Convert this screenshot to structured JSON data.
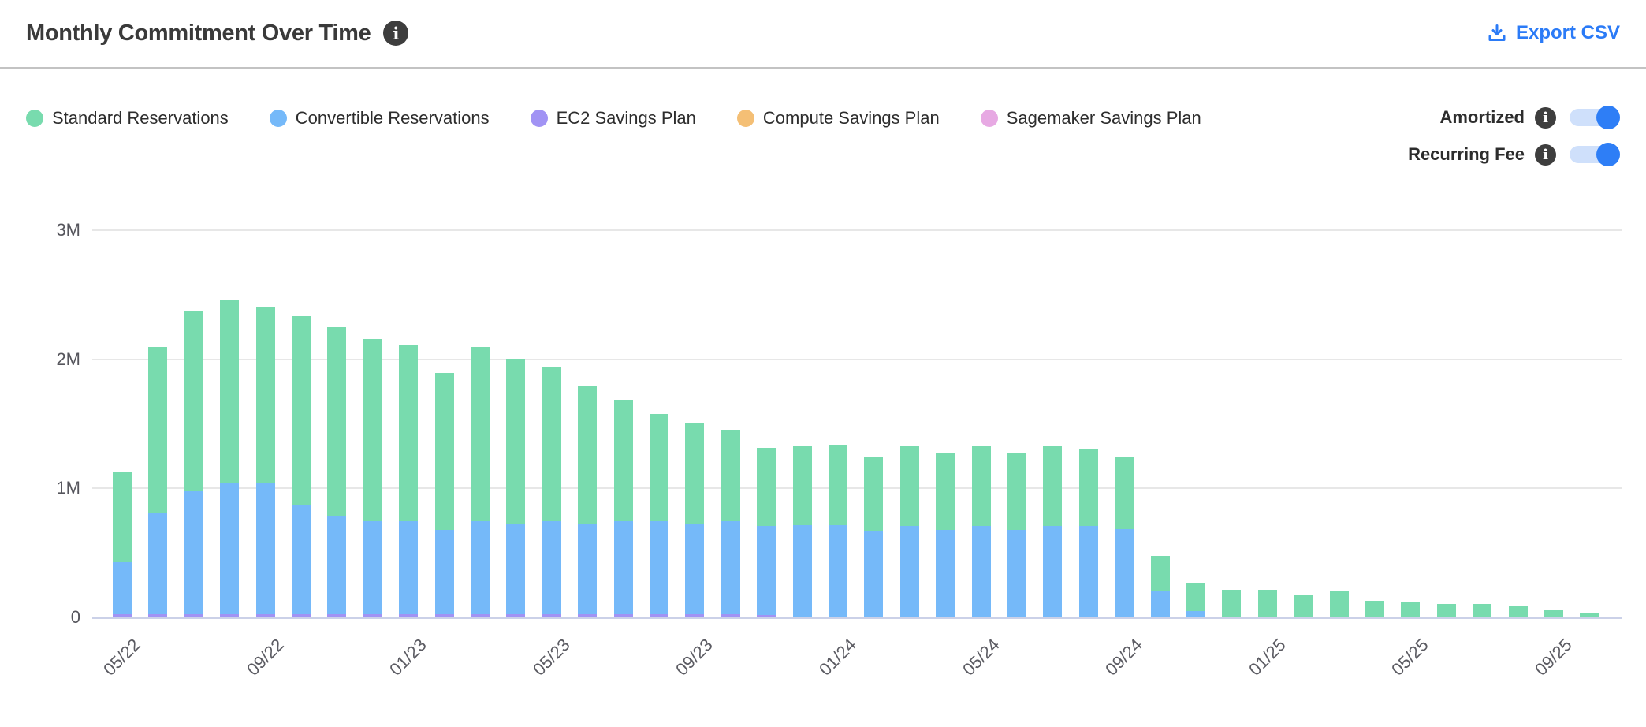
{
  "header": {
    "title": "Monthly Commitment Over Time",
    "export_label": "Export CSV"
  },
  "icons": {
    "info": "i"
  },
  "colors": {
    "accent_blue": "#2b7bf7",
    "toggle_track": "#cfe0fb",
    "toggle_knob": "#2e7ef6",
    "divider": "#c3c3c3",
    "gridline": "#e7e7e7",
    "axis_line": "#cbd1e8"
  },
  "toggles": [
    {
      "label": "Amortized",
      "state": "on"
    },
    {
      "label": "Recurring Fee",
      "state": "on"
    }
  ],
  "chart_data": {
    "type": "bar",
    "stacked": true,
    "title": "Monthly Commitment Over Time",
    "xlabel": "",
    "ylabel": "",
    "values_unit": "millions",
    "ylim": [
      0,
      3
    ],
    "y_ticks": [
      "0",
      "1M",
      "2M",
      "3M"
    ],
    "x_ticks": [
      "05/22",
      "09/22",
      "01/23",
      "05/23",
      "09/23",
      "01/24",
      "05/24",
      "09/24",
      "01/25",
      "05/25",
      "09/25"
    ],
    "grid": "horizontal",
    "legend_position": "top-left",
    "series": [
      {
        "key": "std",
        "name": "Standard Reservations",
        "color": "#78dbae"
      },
      {
        "key": "conv",
        "name": "Convertible Reservations",
        "color": "#75b9f9"
      },
      {
        "key": "ec2",
        "name": "EC2 Savings Plan",
        "color": "#a193f4"
      },
      {
        "key": "comp",
        "name": "Compute Savings Plan",
        "color": "#f4bf75"
      },
      {
        "key": "sm",
        "name": "Sagemaker Savings Plan",
        "color": "#e7a9e3"
      }
    ],
    "stack_order": [
      "ec2",
      "comp",
      "sm",
      "conv",
      "std"
    ],
    "months": [
      {
        "m": "05/22",
        "std": 0.7,
        "conv": 0.4,
        "ec2": 0.02,
        "comp": 0,
        "sm": 0
      },
      {
        "m": "06/22",
        "std": 1.29,
        "conv": 0.78,
        "ec2": 0.02,
        "comp": 0,
        "sm": 0
      },
      {
        "m": "07/22",
        "std": 1.4,
        "conv": 0.95,
        "ec2": 0.02,
        "comp": 0,
        "sm": 0
      },
      {
        "m": "08/22",
        "std": 1.41,
        "conv": 1.02,
        "ec2": 0.02,
        "comp": 0,
        "sm": 0
      },
      {
        "m": "09/22",
        "std": 1.36,
        "conv": 1.02,
        "ec2": 0.02,
        "comp": 0,
        "sm": 0
      },
      {
        "m": "10/22",
        "std": 1.46,
        "conv": 0.85,
        "ec2": 0.02,
        "comp": 0,
        "sm": 0
      },
      {
        "m": "11/22",
        "std": 1.46,
        "conv": 0.76,
        "ec2": 0.02,
        "comp": 0,
        "sm": 0
      },
      {
        "m": "12/22",
        "std": 1.41,
        "conv": 0.72,
        "ec2": 0.02,
        "comp": 0,
        "sm": 0
      },
      {
        "m": "01/23",
        "std": 1.37,
        "conv": 0.72,
        "ec2": 0.02,
        "comp": 0,
        "sm": 0
      },
      {
        "m": "02/23",
        "std": 1.22,
        "conv": 0.65,
        "ec2": 0.02,
        "comp": 0,
        "sm": 0
      },
      {
        "m": "03/23",
        "std": 1.35,
        "conv": 0.72,
        "ec2": 0.02,
        "comp": 0,
        "sm": 0
      },
      {
        "m": "04/23",
        "std": 1.28,
        "conv": 0.7,
        "ec2": 0.02,
        "comp": 0,
        "sm": 0
      },
      {
        "m": "05/23",
        "std": 1.19,
        "conv": 0.72,
        "ec2": 0.02,
        "comp": 0,
        "sm": 0
      },
      {
        "m": "06/23",
        "std": 1.07,
        "conv": 0.7,
        "ec2": 0.02,
        "comp": 0,
        "sm": 0
      },
      {
        "m": "07/23",
        "std": 0.94,
        "conv": 0.72,
        "ec2": 0.02,
        "comp": 0,
        "sm": 0
      },
      {
        "m": "08/23",
        "std": 0.83,
        "conv": 0.72,
        "ec2": 0.02,
        "comp": 0,
        "sm": 0
      },
      {
        "m": "09/23",
        "std": 0.78,
        "conv": 0.7,
        "ec2": 0.02,
        "comp": 0,
        "sm": 0
      },
      {
        "m": "10/23",
        "std": 0.71,
        "conv": 0.72,
        "ec2": 0.02,
        "comp": 0,
        "sm": 0
      },
      {
        "m": "11/23",
        "std": 0.61,
        "conv": 0.69,
        "ec2": 0.01,
        "comp": 0,
        "sm": 0
      },
      {
        "m": "12/23",
        "std": 0.61,
        "conv": 0.71,
        "ec2": 0,
        "comp": 0,
        "sm": 0
      },
      {
        "m": "01/24",
        "std": 0.62,
        "conv": 0.71,
        "ec2": 0,
        "comp": 0,
        "sm": 0
      },
      {
        "m": "02/24",
        "std": 0.58,
        "conv": 0.66,
        "ec2": 0,
        "comp": 0,
        "sm": 0
      },
      {
        "m": "03/24",
        "std": 0.62,
        "conv": 0.7,
        "ec2": 0,
        "comp": 0,
        "sm": 0
      },
      {
        "m": "04/24",
        "std": 0.6,
        "conv": 0.67,
        "ec2": 0,
        "comp": 0,
        "sm": 0
      },
      {
        "m": "05/24",
        "std": 0.62,
        "conv": 0.7,
        "ec2": 0,
        "comp": 0,
        "sm": 0
      },
      {
        "m": "06/24",
        "std": 0.6,
        "conv": 0.67,
        "ec2": 0,
        "comp": 0,
        "sm": 0
      },
      {
        "m": "07/24",
        "std": 0.62,
        "conv": 0.7,
        "ec2": 0,
        "comp": 0,
        "sm": 0
      },
      {
        "m": "08/24",
        "std": 0.6,
        "conv": 0.7,
        "ec2": 0,
        "comp": 0,
        "sm": 0
      },
      {
        "m": "09/24",
        "std": 0.56,
        "conv": 0.68,
        "ec2": 0,
        "comp": 0,
        "sm": 0
      },
      {
        "m": "10/24",
        "std": 0.27,
        "conv": 0.2,
        "ec2": 0,
        "comp": 0,
        "sm": 0
      },
      {
        "m": "11/24",
        "std": 0.22,
        "conv": 0.04,
        "ec2": 0,
        "comp": 0,
        "sm": 0
      },
      {
        "m": "12/24",
        "std": 0.21,
        "conv": 0,
        "ec2": 0,
        "comp": 0,
        "sm": 0
      },
      {
        "m": "01/25",
        "std": 0.21,
        "conv": 0,
        "ec2": 0,
        "comp": 0,
        "sm": 0
      },
      {
        "m": "02/25",
        "std": 0.17,
        "conv": 0,
        "ec2": 0,
        "comp": 0,
        "sm": 0
      },
      {
        "m": "03/25",
        "std": 0.2,
        "conv": 0,
        "ec2": 0,
        "comp": 0,
        "sm": 0
      },
      {
        "m": "04/25",
        "std": 0.12,
        "conv": 0,
        "ec2": 0,
        "comp": 0,
        "sm": 0
      },
      {
        "m": "05/25",
        "std": 0.11,
        "conv": 0,
        "ec2": 0,
        "comp": 0,
        "sm": 0
      },
      {
        "m": "06/25",
        "std": 0.1,
        "conv": 0,
        "ec2": 0,
        "comp": 0,
        "sm": 0
      },
      {
        "m": "07/25",
        "std": 0.1,
        "conv": 0,
        "ec2": 0,
        "comp": 0,
        "sm": 0
      },
      {
        "m": "08/25",
        "std": 0.08,
        "conv": 0,
        "ec2": 0,
        "comp": 0,
        "sm": 0
      },
      {
        "m": "09/25",
        "std": 0.055,
        "conv": 0,
        "ec2": 0,
        "comp": 0,
        "sm": 0
      },
      {
        "m": "10/25",
        "std": 0.025,
        "conv": 0,
        "ec2": 0,
        "comp": 0,
        "sm": 0
      }
    ]
  }
}
